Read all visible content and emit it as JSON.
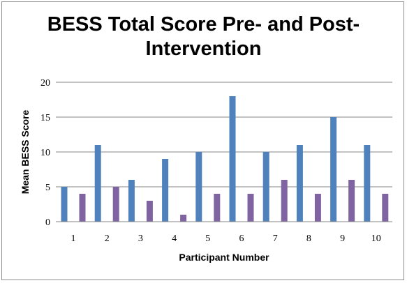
{
  "chart_data": {
    "type": "bar",
    "title_line1": "BESS Total Score Pre- and Post-",
    "title_line2": "Intervention",
    "xlabel": "Participant Number",
    "ylabel": "Mean BESS Score",
    "categories": [
      "1",
      "2",
      "3",
      "4",
      "5",
      "6",
      "7",
      "8",
      "9",
      "10"
    ],
    "series": [
      {
        "values": [
          5,
          11,
          6,
          9,
          10,
          18,
          10,
          11,
          15,
          11
        ],
        "color": "#4f81bd"
      },
      {
        "values": [
          4,
          5,
          3,
          1,
          4,
          4,
          6,
          4,
          6,
          4
        ],
        "color": "#8064a2"
      }
    ],
    "ylim": [
      0,
      20
    ],
    "yticks": [
      0,
      5,
      10,
      15,
      20
    ],
    "grid": true,
    "legend": "none"
  }
}
